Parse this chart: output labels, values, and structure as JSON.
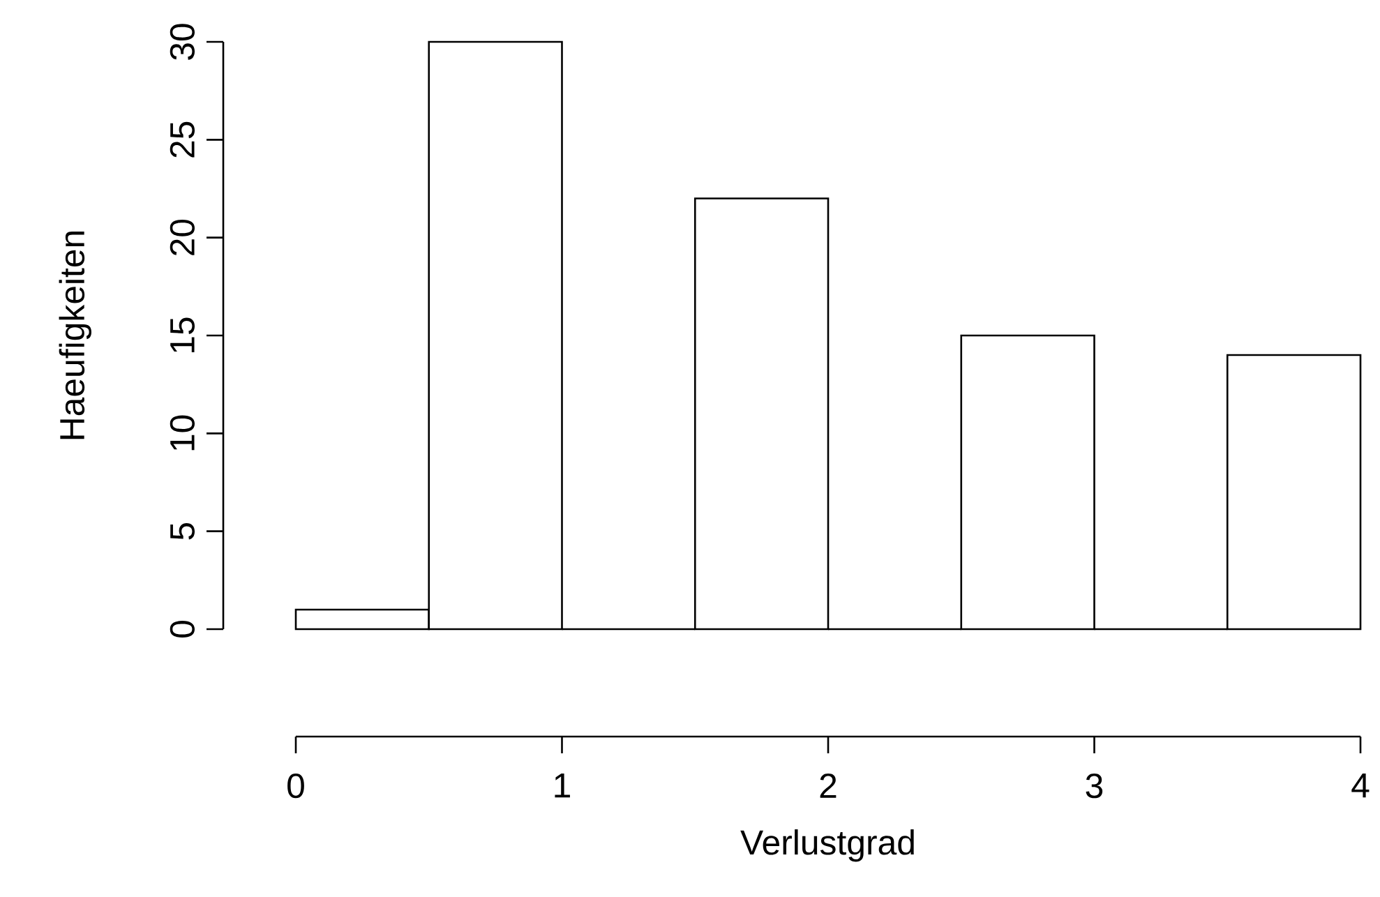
{
  "chart_data": {
    "type": "histogram",
    "xlabel": "Verlustgrad",
    "ylabel": "Haeufigkeiten",
    "bins": [
      0,
      0.5,
      1,
      1.5,
      2,
      2.5,
      3,
      3.5,
      4
    ],
    "values": [
      1,
      30,
      0,
      22,
      0,
      15,
      0,
      14
    ],
    "xlim": [
      0,
      4
    ],
    "ylim": [
      0,
      30
    ],
    "xticks": [
      0,
      1,
      2,
      3,
      4
    ],
    "yticks": [
      0,
      5,
      10,
      15,
      20,
      25,
      30
    ]
  }
}
